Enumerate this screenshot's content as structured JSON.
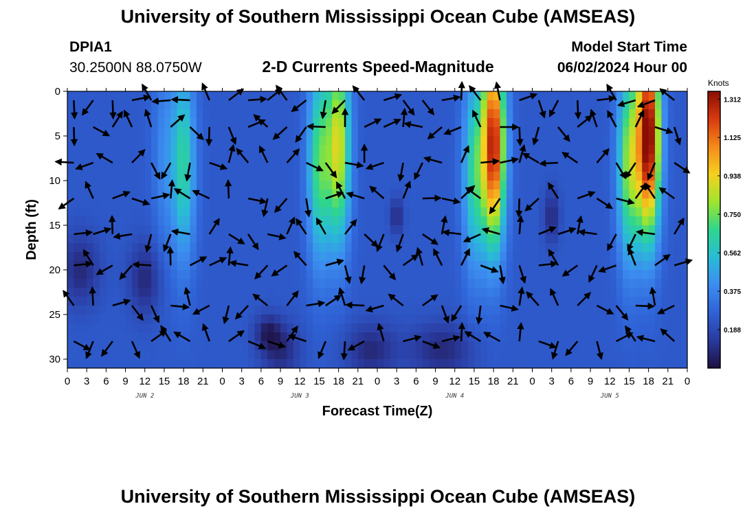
{
  "header": {
    "title": "University of Southern Mississippi Ocean Cube (AMSEAS)",
    "station_id": "DPIA1",
    "coordinates": "30.2500N  88.0750W",
    "plot_title": "2-D Currents Speed-Magnitude",
    "model_start_label": "Model Start Time",
    "model_start_value": "06/02/2024 Hour 00"
  },
  "footer": {
    "title": "University of Southern Mississippi Ocean Cube (AMSEAS)"
  },
  "chart_data": {
    "type": "heatmap",
    "title": "2-D Currents Speed-Magnitude",
    "xlabel": "Forecast Time(Z)",
    "ylabel": "Depth (ft)",
    "x_tick_labels": [
      "0",
      "3",
      "6",
      "9",
      "12",
      "15",
      "18",
      "21",
      "0",
      "3",
      "6",
      "9",
      "12",
      "15",
      "18",
      "21",
      "0",
      "3",
      "6",
      "9",
      "12",
      "15",
      "18",
      "21",
      "0",
      "3",
      "6",
      "9",
      "12",
      "15",
      "18",
      "21",
      "0"
    ],
    "x_range_hours": [
      0,
      96
    ],
    "day_labels": [
      {
        "label": "JUN 2",
        "hour": 12
      },
      {
        "label": "JUN 3",
        "hour": 36
      },
      {
        "label": "JUN 4",
        "hour": 60
      },
      {
        "label": "JUN 5",
        "hour": 84
      }
    ],
    "y_ticks": [
      0,
      5,
      10,
      15,
      20,
      25,
      30
    ],
    "y_tick_labels": [
      "0",
      "5",
      "10",
      "15",
      "20",
      "25",
      "30"
    ],
    "y_range_ft": [
      0,
      31
    ],
    "y_inverted": true,
    "colorbar": {
      "unit": "Knots",
      "tick_labels": [
        "1.312",
        "1.125",
        "0.938",
        "0.750",
        "0.562",
        "0.375",
        "0.188"
      ],
      "tick_values": [
        1.312,
        1.125,
        0.938,
        0.75,
        0.562,
        0.375,
        0.188
      ],
      "range": [
        0,
        1.35
      ],
      "colors": [
        "#1e1040",
        "#2a3a9e",
        "#2f62d6",
        "#3c8cf0",
        "#29bcd6",
        "#2ed68e",
        "#9ee52c",
        "#f5d11f",
        "#f48a1a",
        "#d93a0f",
        "#8a0d04"
      ]
    },
    "speed_peaks": [
      {
        "hour": 15,
        "depth_ft": 7,
        "knots": 0.3
      },
      {
        "hour": 18,
        "depth_ft": 8,
        "knots": 0.55
      },
      {
        "hour": 39,
        "depth_ft": 8,
        "knots": 0.62
      },
      {
        "hour": 42,
        "depth_ft": 6,
        "knots": 0.8
      },
      {
        "hour": 63,
        "depth_ft": 9,
        "knots": 0.55
      },
      {
        "hour": 66,
        "depth_ft": 6,
        "knots": 1.2
      },
      {
        "hour": 87,
        "depth_ft": 8,
        "knots": 0.7
      },
      {
        "hour": 90,
        "depth_ft": 5,
        "knots": 1.31
      }
    ],
    "vector_depths_ft": [
      1,
      4,
      8,
      12,
      16,
      19.5,
      24,
      28
    ],
    "vector_hours": [
      1,
      4,
      7,
      10,
      13,
      16,
      19,
      22,
      25,
      28,
      31,
      34,
      37,
      40,
      43,
      46,
      49,
      52,
      55,
      58,
      61,
      64,
      67,
      70,
      73,
      76,
      79,
      82,
      85,
      88,
      91,
      94
    ]
  }
}
